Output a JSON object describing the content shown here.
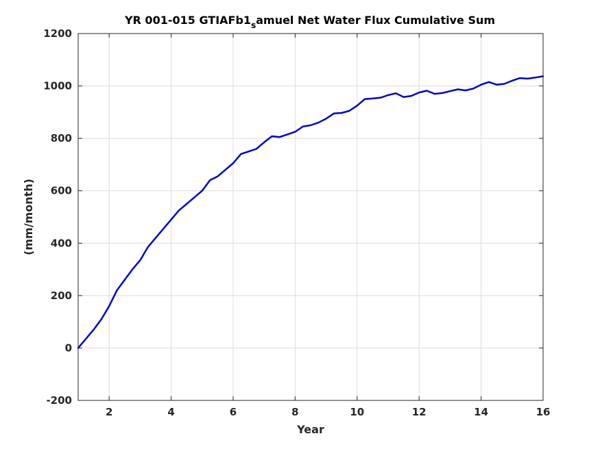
{
  "chart_data": {
    "type": "line",
    "title_main": "YR 001-015 GTIAFb1",
    "title_sub": "s",
    "title_rest": "amuel Net Water Flux Cumulative Sum",
    "xlabel": "Year",
    "ylabel": "(mm/month)",
    "xlim": [
      1,
      16
    ],
    "ylim": [
      -200,
      1200
    ],
    "xticks": [
      2,
      4,
      6,
      8,
      10,
      12,
      14,
      16
    ],
    "yticks": [
      -200,
      0,
      200,
      400,
      600,
      800,
      1000,
      1200
    ],
    "grid": true,
    "series": [
      {
        "color": "#0000cc",
        "x": [
          1.0,
          1.25,
          1.5,
          1.75,
          2.0,
          2.25,
          2.5,
          2.75,
          3.0,
          3.25,
          3.5,
          3.75,
          4.0,
          4.25,
          4.5,
          4.75,
          5.0,
          5.25,
          5.5,
          5.75,
          6.0,
          6.25,
          6.5,
          6.75,
          7.0,
          7.25,
          7.5,
          7.75,
          8.0,
          8.25,
          8.5,
          8.75,
          9.0,
          9.25,
          9.5,
          9.75,
          10.0,
          10.25,
          10.5,
          10.75,
          11.0,
          11.25,
          11.5,
          11.75,
          12.0,
          12.25,
          12.5,
          12.75,
          13.0,
          13.25,
          13.5,
          13.75,
          14.0,
          14.25,
          14.5,
          14.75,
          15.0,
          15.25,
          15.5,
          15.75,
          16.0
        ],
        "y": [
          0,
          35,
          70,
          110,
          160,
          220,
          260,
          300,
          335,
          385,
          420,
          455,
          490,
          525,
          550,
          575,
          600,
          640,
          655,
          680,
          705,
          740,
          750,
          760,
          785,
          808,
          805,
          815,
          825,
          845,
          850,
          860,
          875,
          895,
          897,
          905,
          925,
          950,
          952,
          955,
          965,
          972,
          958,
          962,
          975,
          982,
          970,
          973,
          980,
          987,
          983,
          990,
          1005,
          1015,
          1005,
          1008,
          1020,
          1030,
          1028,
          1032,
          1037
        ]
      }
    ]
  }
}
